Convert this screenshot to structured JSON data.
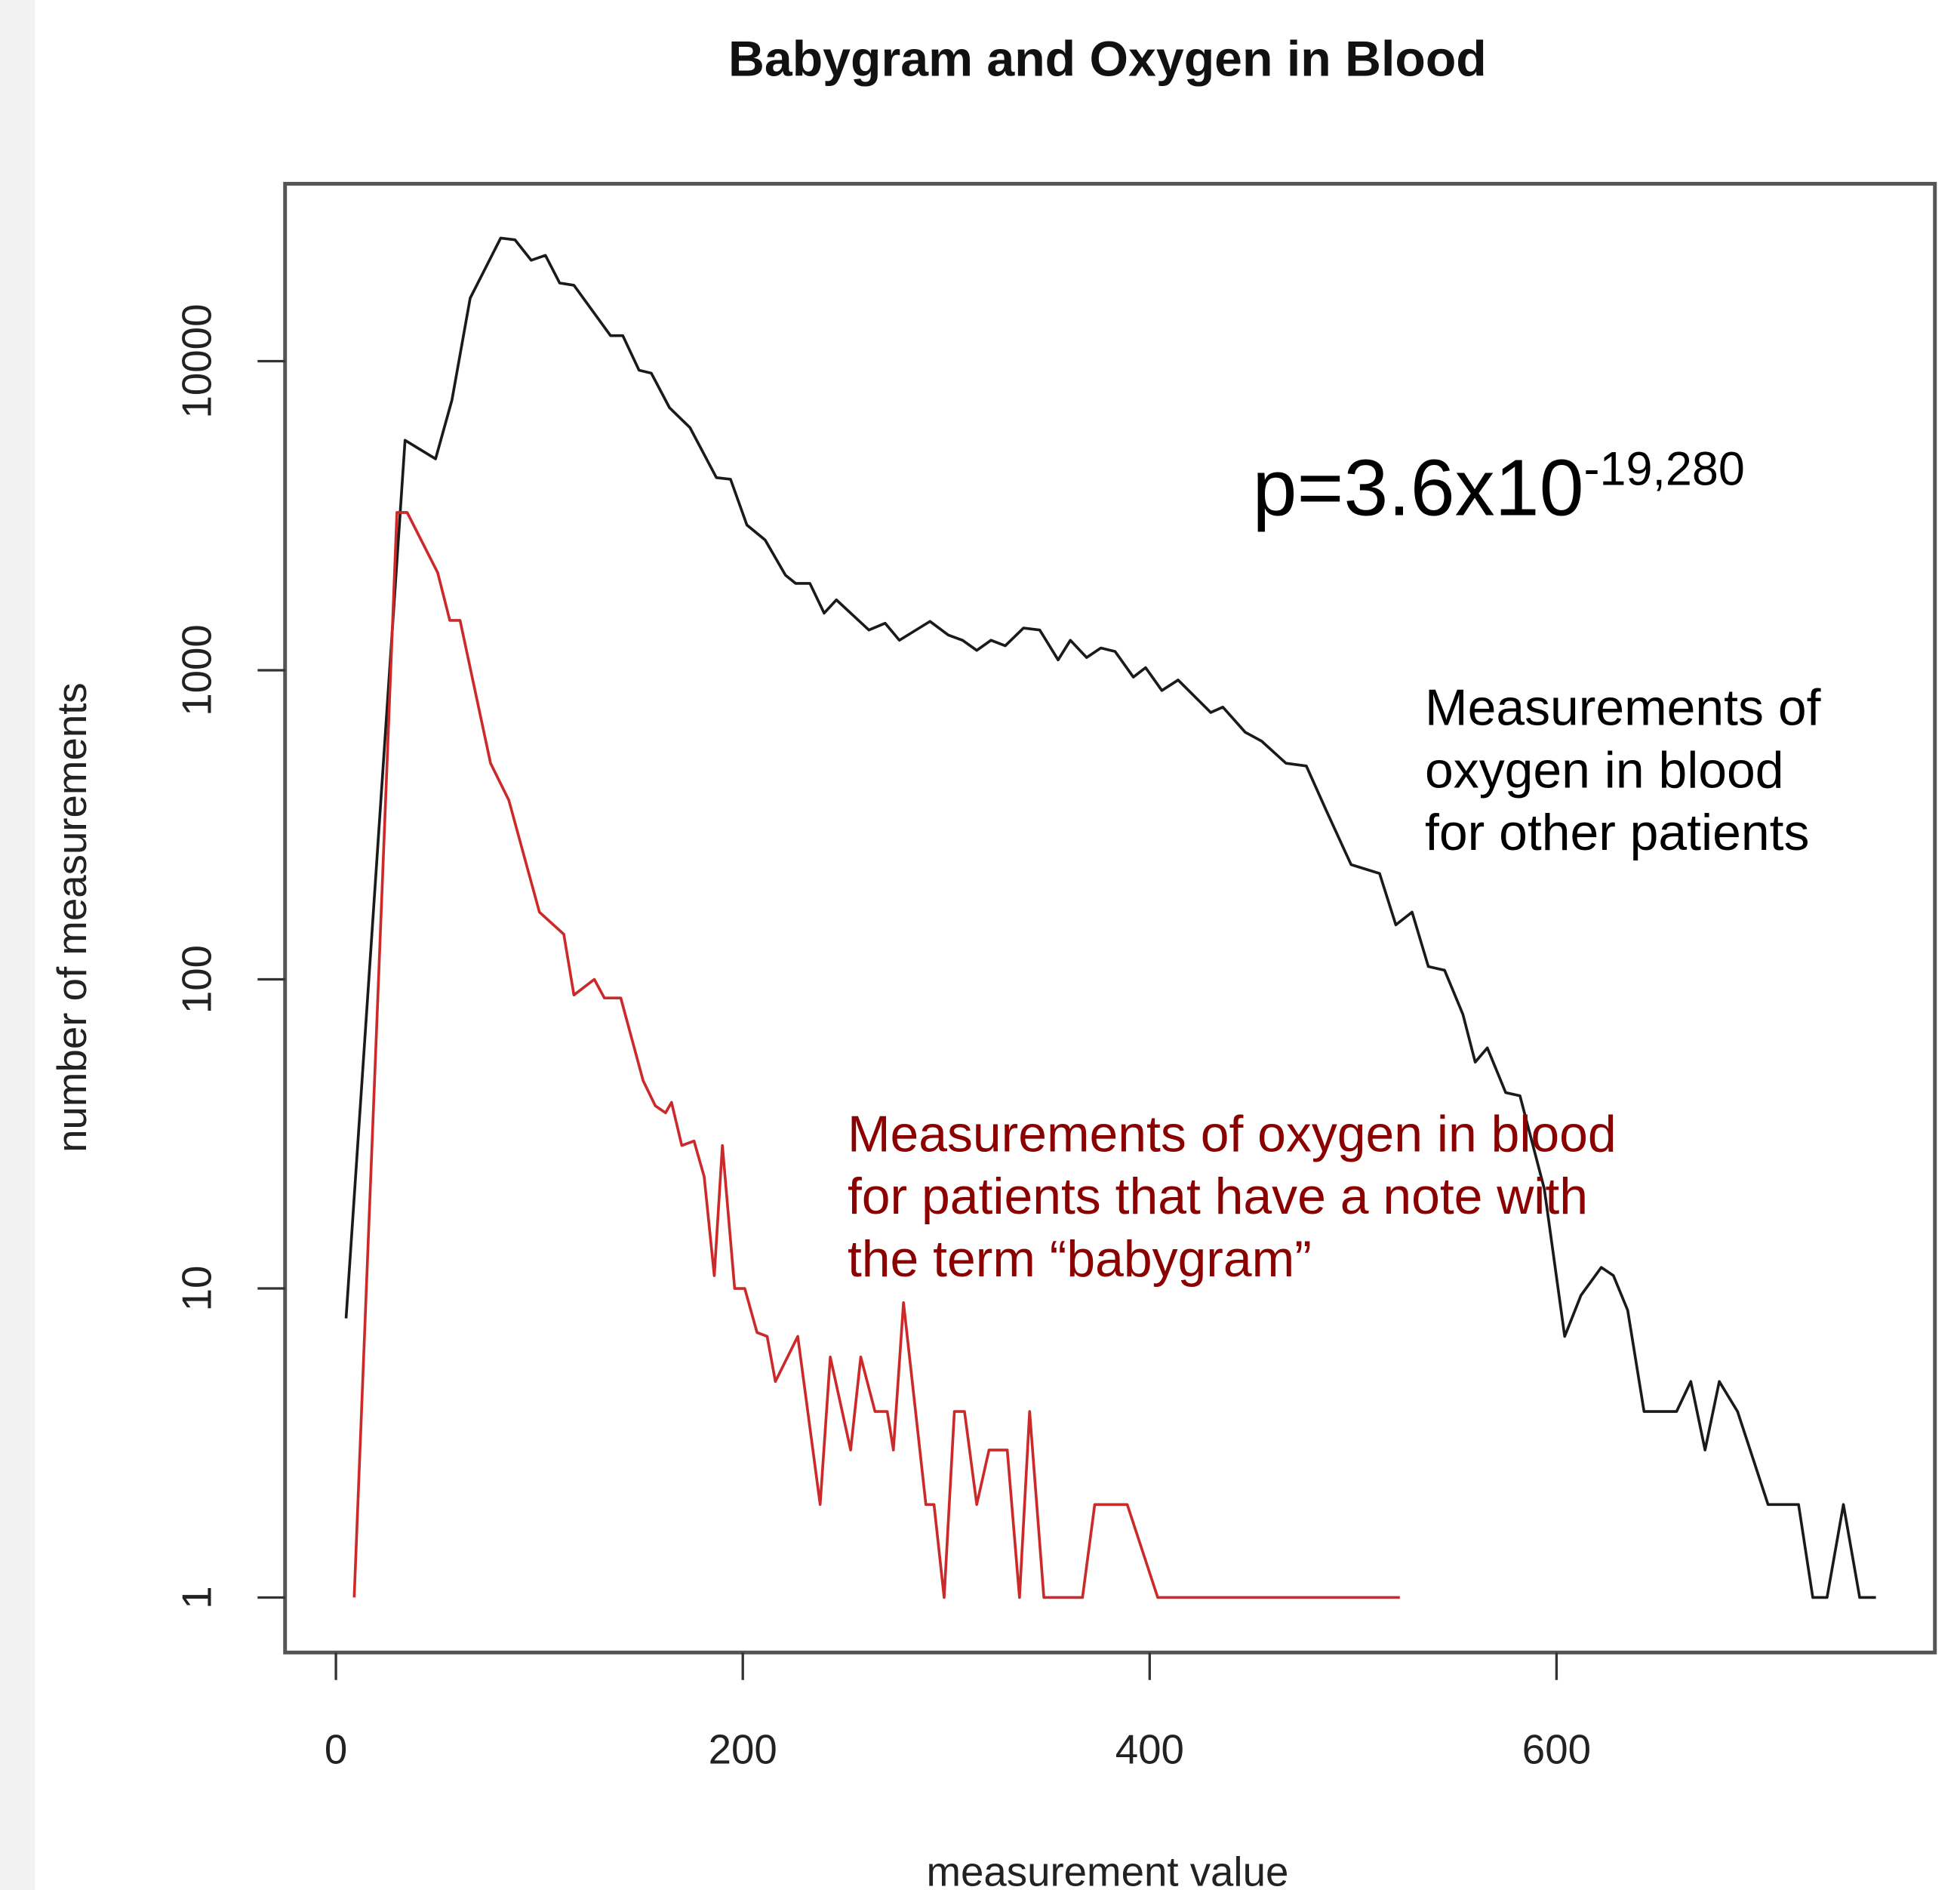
{
  "chart_data": {
    "type": "line",
    "title": "Babygram and Oxygen in Blood",
    "x_label": "measurement value",
    "y_label": "number of measurements",
    "xlim": [
      -25,
      786
    ],
    "ylim": [
      0.664,
      37500
    ],
    "xticks": [
      0,
      200,
      400,
      600
    ],
    "yticks": [
      1,
      10,
      100,
      1000,
      10000
    ],
    "y_scale": "log",
    "grid": false,
    "annotations": [
      {
        "text": "p=3.6x10",
        "superscript": "-19,280",
        "color": "#000000"
      },
      {
        "lines": [
          "Measurements of",
          "oxygen in blood",
          "for other patients"
        ],
        "color": "#000000"
      },
      {
        "lines": [
          "Measurements of oxygen in blood",
          "for patients that have a note with",
          "the term “babygram”"
        ],
        "color": "#8b0000"
      }
    ],
    "series": [
      {
        "color": "#1a1a1a",
        "x": [
          5,
          34,
          49,
          57,
          66,
          81,
          88,
          96,
          103,
          110,
          117,
          135,
          141,
          149,
          155,
          164,
          174,
          187,
          194,
          202,
          211,
          221,
          226,
          233,
          240,
          246,
          262,
          270,
          277,
          292,
          301,
          308,
          315,
          322,
          329,
          338,
          346,
          355,
          361,
          369,
          376,
          383,
          392,
          398,
          406,
          414,
          430,
          436,
          447,
          455,
          467,
          477,
          487,
          499,
          513,
          521,
          529,
          537,
          545,
          554,
          560,
          566,
          575,
          582,
          594,
          604,
          612,
          622,
          628,
          635,
          643,
          659,
          666,
          673,
          680,
          689,
          704,
          719,
          726,
          733,
          741,
          749,
          757
        ],
        "values": [
          8,
          5550,
          4830,
          7480,
          16000,
          25000,
          24700,
          21200,
          22000,
          17900,
          17600,
          12100,
          12100,
          9350,
          9150,
          7070,
          6100,
          4200,
          4150,
          2950,
          2640,
          2030,
          1910,
          1910,
          1530,
          1690,
          1350,
          1420,
          1250,
          1440,
          1300,
          1250,
          1160,
          1250,
          1200,
          1370,
          1350,
          1080,
          1250,
          1100,
          1180,
          1150,
          950,
          1020,
          860,
          930,
          730,
          760,
          630,
          590,
          500,
          490,
          350,
          235,
          220,
          150,
          165,
          110,
          107,
          77,
          54,
          60,
          43,
          42,
          21,
          7,
          9.5,
          11.7,
          11,
          8.5,
          4,
          4,
          5,
          3,
          5,
          4,
          2,
          2,
          1,
          1,
          2,
          1,
          1
        ]
      },
      {
        "color": "#cc2a2a",
        "x": [
          9,
          30,
          35,
          50,
          56,
          61,
          76,
          85,
          100,
          112,
          117,
          127,
          132,
          140,
          151,
          157,
          162,
          165,
          170,
          176,
          181,
          186,
          190,
          196,
          201,
          207,
          212,
          216,
          227,
          238,
          243,
          253,
          258,
          265,
          271,
          274,
          279,
          290,
          294,
          299,
          304,
          309,
          315,
          321,
          330,
          336,
          341,
          348,
          367,
          373,
          389,
          404,
          523
        ],
        "values": [
          1,
          3240,
          3240,
          2070,
          1450,
          1450,
          500,
          380,
          165,
          140,
          89,
          100,
          87,
          87,
          47,
          39,
          37,
          40,
          29,
          30,
          23,
          11,
          29,
          10,
          10,
          7.2,
          7,
          5,
          7,
          2,
          6,
          3,
          6,
          4,
          4,
          3,
          9,
          2,
          2,
          1,
          4,
          4,
          2,
          3,
          3,
          1,
          4,
          1,
          1,
          2,
          2,
          1,
          1
        ]
      }
    ]
  }
}
